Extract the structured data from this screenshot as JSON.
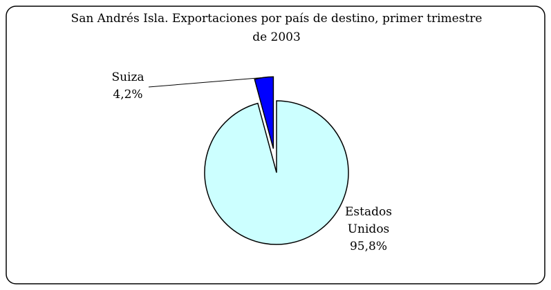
{
  "chart_data": {
    "type": "pie",
    "title": "San Andrés Isla.  Exportaciones por país de destino, primer trimestre de 2003",
    "categories": [
      "Estados Unidos",
      "Suiza"
    ],
    "values": [
      95.8,
      4.2
    ],
    "value_labels": [
      "95,8%",
      "4,2%"
    ],
    "colors": [
      "#ccffff",
      "#0000ff"
    ]
  }
}
